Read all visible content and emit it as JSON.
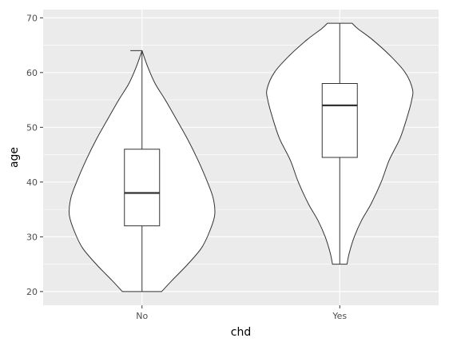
{
  "chart_data": {
    "type": "violin",
    "title": "",
    "xlabel": "chd",
    "ylabel": "age",
    "categories": [
      "No",
      "Yes"
    ],
    "ylim": [
      17.5,
      71.5
    ],
    "yticks": [
      20,
      30,
      40,
      50,
      60,
      70
    ],
    "grid": true,
    "panel_background": "#ebebeb",
    "grid_color": "#ffffff",
    "violin_fill": "#ffffff",
    "line_color": "#333333",
    "series": [
      {
        "category": "No",
        "min": 20,
        "max": 64,
        "box": {
          "q1": 32,
          "median": 38,
          "q3": 46,
          "whisker_low": 20,
          "whisker_high": 64
        },
        "density": [
          [
            20,
            0.27
          ],
          [
            22,
            0.41
          ],
          [
            25,
            0.63
          ],
          [
            28,
            0.82
          ],
          [
            31,
            0.93
          ],
          [
            34,
            1.0
          ],
          [
            37,
            0.98
          ],
          [
            40,
            0.9
          ],
          [
            44,
            0.77
          ],
          [
            48,
            0.62
          ],
          [
            52,
            0.45
          ],
          [
            55,
            0.32
          ],
          [
            58,
            0.18
          ],
          [
            61,
            0.08
          ],
          [
            64,
            0.0
          ]
        ],
        "cap_half_width": 0.16
      },
      {
        "category": "Yes",
        "min": 25,
        "max": 69,
        "box": {
          "q1": 44.5,
          "median": 54,
          "q3": 58,
          "whisker_low": 25,
          "whisker_high": 69
        },
        "density": [
          [
            25,
            0.1
          ],
          [
            27,
            0.13
          ],
          [
            30,
            0.2
          ],
          [
            33,
            0.3
          ],
          [
            36,
            0.43
          ],
          [
            40,
            0.57
          ],
          [
            44,
            0.68
          ],
          [
            48,
            0.83
          ],
          [
            52,
            0.93
          ],
          [
            55,
            0.99
          ],
          [
            57,
            1.0
          ],
          [
            60,
            0.9
          ],
          [
            63,
            0.7
          ],
          [
            66,
            0.45
          ],
          [
            68,
            0.25
          ],
          [
            69,
            0.17
          ]
        ],
        "cap_half_width": 0.16
      }
    ]
  }
}
